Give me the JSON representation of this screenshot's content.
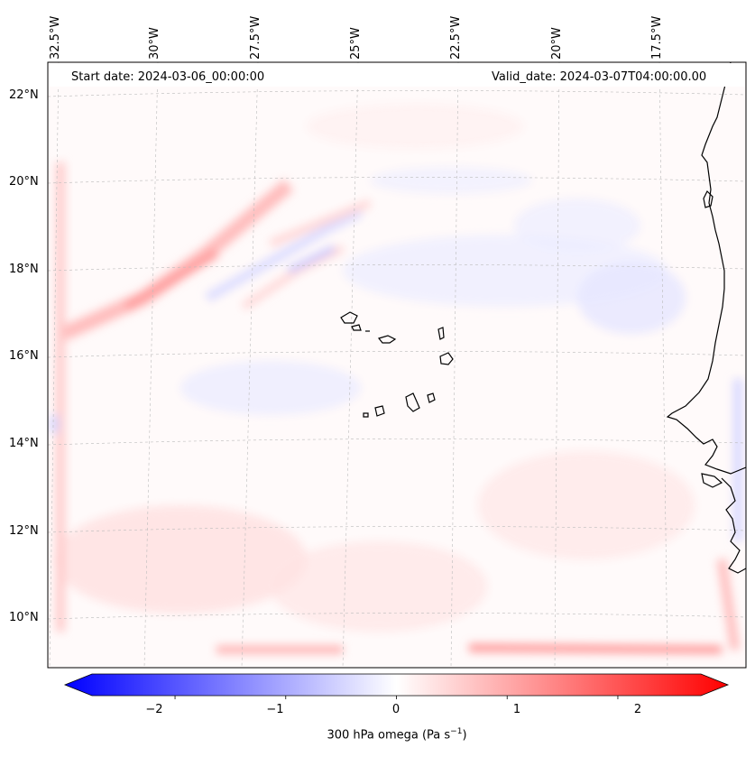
{
  "header": {
    "start_date": "Start date: 2024-03-06_00:00:00",
    "valid_date": "Valid_date: 2024-03-07T04:00:00.00"
  },
  "axes": {
    "lat_labels": [
      "22°N",
      "20°N",
      "18°N",
      "16°N",
      "14°N",
      "12°N",
      "10°N"
    ],
    "lon_labels": [
      "32.5°W",
      "30°W",
      "27.5°W",
      "25°W",
      "22.5°W",
      "20°W",
      "17.5°W"
    ]
  },
  "colorbar": {
    "ticks": [
      "−2",
      "−1",
      "0",
      "1",
      "2"
    ],
    "tick_values": [
      -2,
      -1,
      0,
      1,
      2
    ],
    "range": [
      -2.75,
      2.75
    ],
    "label_main": "300 hPa omega (Pa s",
    "label_sup": "−1",
    "label_end": ")",
    "color_min": "#0000ff",
    "color_mid": "#ffffff",
    "color_max": "#ff0000"
  },
  "map": {
    "variable": "300 hPa omega",
    "units": "Pa s^-1",
    "coastline_color": "#000000",
    "gridline_color": "#bbbbbb"
  }
}
